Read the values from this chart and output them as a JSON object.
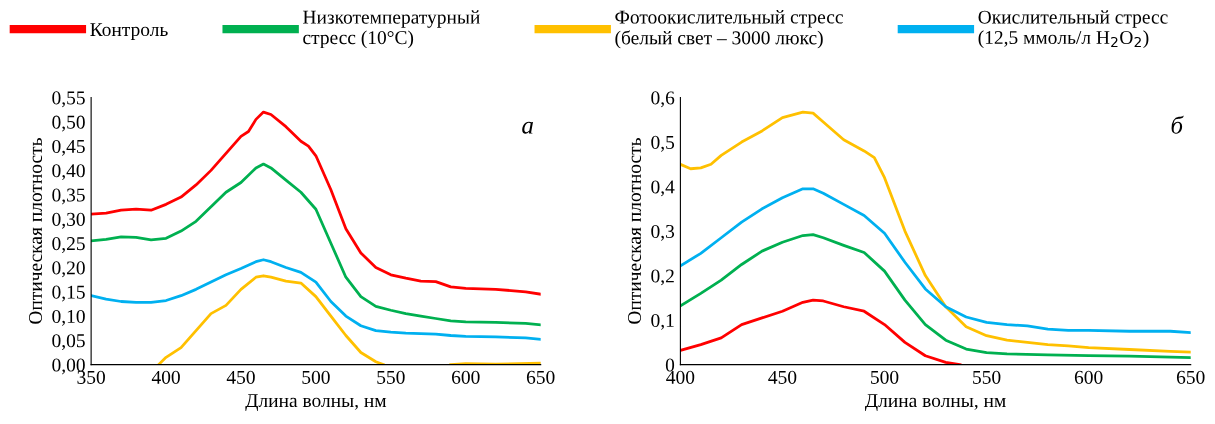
{
  "chart_data": [
    {
      "type": "line",
      "legend": "top",
      "ylabel": "Оптическая плотность",
      "xlabel": "Длина волны, нм",
      "annotations": [
        "а"
      ],
      "xlim": [
        350,
        650
      ],
      "xticks": [
        350,
        400,
        450,
        500,
        550,
        600,
        650
      ],
      "ylim": [
        0,
        0.55
      ],
      "yticks": [
        {
          "value": 0,
          "label": "0,00"
        },
        {
          "value": 0.05,
          "label": "0,05"
        },
        {
          "value": 0.1,
          "label": "0,10"
        },
        {
          "value": 0.15,
          "label": "0,15"
        },
        {
          "value": 0.2,
          "label": "0,20"
        },
        {
          "value": 0.25,
          "label": "0,25"
        },
        {
          "value": 0.3,
          "label": "0,30"
        },
        {
          "value": 0.35,
          "label": "0,35"
        },
        {
          "value": 0.4,
          "label": "0,40"
        },
        {
          "value": 0.45,
          "label": "0,45"
        },
        {
          "value": 0.5,
          "label": "0,50"
        },
        {
          "value": 0.55,
          "label": "0,55"
        }
      ],
      "series": [
        {
          "name": "Контроль",
          "color": "#ff0000",
          "x": [
            350,
            360,
            370,
            380,
            390,
            400,
            410,
            420,
            430,
            440,
            450,
            455,
            460,
            465,
            470,
            480,
            490,
            495,
            500,
            510,
            520,
            530,
            540,
            550,
            560,
            570,
            580,
            590,
            600,
            620,
            640,
            650
          ],
          "values": [
            0.31,
            0.312,
            0.318,
            0.32,
            0.318,
            0.33,
            0.345,
            0.37,
            0.4,
            0.435,
            0.47,
            0.48,
            0.505,
            0.52,
            0.515,
            0.49,
            0.46,
            0.45,
            0.43,
            0.36,
            0.28,
            0.23,
            0.2,
            0.185,
            0.178,
            0.172,
            0.171,
            0.16,
            0.157,
            0.155,
            0.15,
            0.145
          ]
        },
        {
          "name": "Низкотемпературный\nстресс (10°C)",
          "color": "#00b050",
          "x": [
            350,
            360,
            370,
            380,
            390,
            400,
            410,
            420,
            430,
            440,
            450,
            460,
            465,
            470,
            480,
            490,
            500,
            510,
            520,
            530,
            540,
            550,
            560,
            570,
            580,
            590,
            600,
            620,
            640,
            650
          ],
          "values": [
            0.255,
            0.258,
            0.263,
            0.262,
            0.257,
            0.26,
            0.275,
            0.295,
            0.325,
            0.355,
            0.375,
            0.405,
            0.413,
            0.405,
            0.38,
            0.355,
            0.32,
            0.25,
            0.18,
            0.14,
            0.12,
            0.112,
            0.105,
            0.1,
            0.095,
            0.09,
            0.088,
            0.087,
            0.085,
            0.082
          ]
        },
        {
          "name": "Фотоокислительный стресс\n(белый свет – 3000 люкс)",
          "color": "#ffc000",
          "x": [
            395,
            400,
            410,
            420,
            430,
            440,
            450,
            460,
            465,
            470,
            480,
            490,
            500,
            510,
            520,
            530,
            540,
            545,
            570,
            590,
            600,
            620,
            650
          ],
          "values": [
            0,
            0.015,
            0.035,
            0.07,
            0.105,
            0.122,
            0.155,
            0.18,
            0.183,
            0.18,
            0.172,
            0.168,
            0.14,
            0.1,
            0.06,
            0.025,
            0.006,
            0,
            null,
            0,
            0.002,
            0.001,
            0.003
          ]
        },
        {
          "name": "Окислительный стресс\n(12,5 ммоль/л H$_{2}$O$_{2}$)",
          "color": "#00b0f0",
          "x": [
            350,
            360,
            370,
            380,
            390,
            400,
            410,
            420,
            430,
            440,
            450,
            460,
            465,
            470,
            480,
            490,
            500,
            510,
            520,
            530,
            540,
            550,
            560,
            580,
            590,
            600,
            620,
            640,
            650
          ],
          "values": [
            0.142,
            0.135,
            0.13,
            0.128,
            0.128,
            0.132,
            0.142,
            0.155,
            0.17,
            0.185,
            0.198,
            0.212,
            0.216,
            0.212,
            0.2,
            0.19,
            0.17,
            0.13,
            0.1,
            0.08,
            0.07,
            0.067,
            0.065,
            0.063,
            0.06,
            0.058,
            0.057,
            0.055,
            0.052
          ]
        }
      ]
    },
    {
      "type": "line",
      "ylabel": "Оптическая плотность",
      "xlabel": "Длина волны, нм",
      "annotations": [
        "б"
      ],
      "xlim": [
        400,
        650
      ],
      "xticks": [
        400,
        450,
        500,
        550,
        600,
        650
      ],
      "ylim": [
        0,
        0.6
      ],
      "yticks": [
        0,
        {
          "value": 0.1,
          "label": "0,1"
        },
        {
          "value": 0.2,
          "label": "0,2"
        },
        {
          "value": 0.3,
          "label": "0,3"
        },
        {
          "value": 0.4,
          "label": "0,4"
        },
        {
          "value": 0.5,
          "label": "0,5"
        },
        {
          "value": 0.6,
          "label": "0,6"
        }
      ],
      "series": [
        {
          "color": "#ff0000",
          "x": [
            400,
            410,
            420,
            430,
            440,
            450,
            460,
            465,
            470,
            480,
            490,
            500,
            510,
            520,
            530,
            537
          ],
          "values": [
            0.032,
            0.045,
            0.06,
            0.09,
            0.105,
            0.12,
            0.14,
            0.145,
            0.143,
            0.13,
            0.12,
            0.09,
            0.05,
            0.02,
            0.005,
            0
          ]
        },
        {
          "color": "#00b050",
          "x": [
            400,
            410,
            420,
            430,
            440,
            450,
            460,
            465,
            470,
            480,
            490,
            500,
            510,
            520,
            530,
            540,
            550,
            560,
            580,
            600,
            620,
            650
          ],
          "values": [
            0.132,
            0.16,
            0.19,
            0.225,
            0.255,
            0.275,
            0.29,
            0.292,
            0.285,
            0.268,
            0.252,
            0.21,
            0.145,
            0.09,
            0.055,
            0.035,
            0.027,
            0.024,
            0.022,
            0.02,
            0.019,
            0.016
          ]
        },
        {
          "color": "#ffc000",
          "x": [
            400,
            405,
            410,
            415,
            420,
            430,
            440,
            450,
            460,
            465,
            470,
            480,
            490,
            495,
            500,
            510,
            520,
            530,
            540,
            550,
            560,
            570,
            580,
            590,
            600,
            620,
            640,
            650
          ],
          "values": [
            0.45,
            0.44,
            0.442,
            0.45,
            0.47,
            0.5,
            0.525,
            0.555,
            0.567,
            0.565,
            0.545,
            0.505,
            0.48,
            0.465,
            0.42,
            0.3,
            0.2,
            0.13,
            0.085,
            0.065,
            0.055,
            0.05,
            0.045,
            0.042,
            0.038,
            0.034,
            0.03,
            0.028
          ]
        },
        {
          "color": "#00b0f0",
          "x": [
            400,
            410,
            420,
            430,
            440,
            450,
            460,
            465,
            470,
            480,
            490,
            500,
            510,
            520,
            530,
            540,
            550,
            560,
            570,
            580,
            590,
            600,
            620,
            640,
            650
          ],
          "values": [
            0.222,
            0.25,
            0.285,
            0.32,
            0.35,
            0.375,
            0.395,
            0.395,
            0.385,
            0.36,
            0.335,
            0.295,
            0.23,
            0.17,
            0.13,
            0.107,
            0.095,
            0.09,
            0.087,
            0.08,
            0.077,
            0.077,
            0.075,
            0.075,
            0.072
          ]
        }
      ]
    }
  ]
}
